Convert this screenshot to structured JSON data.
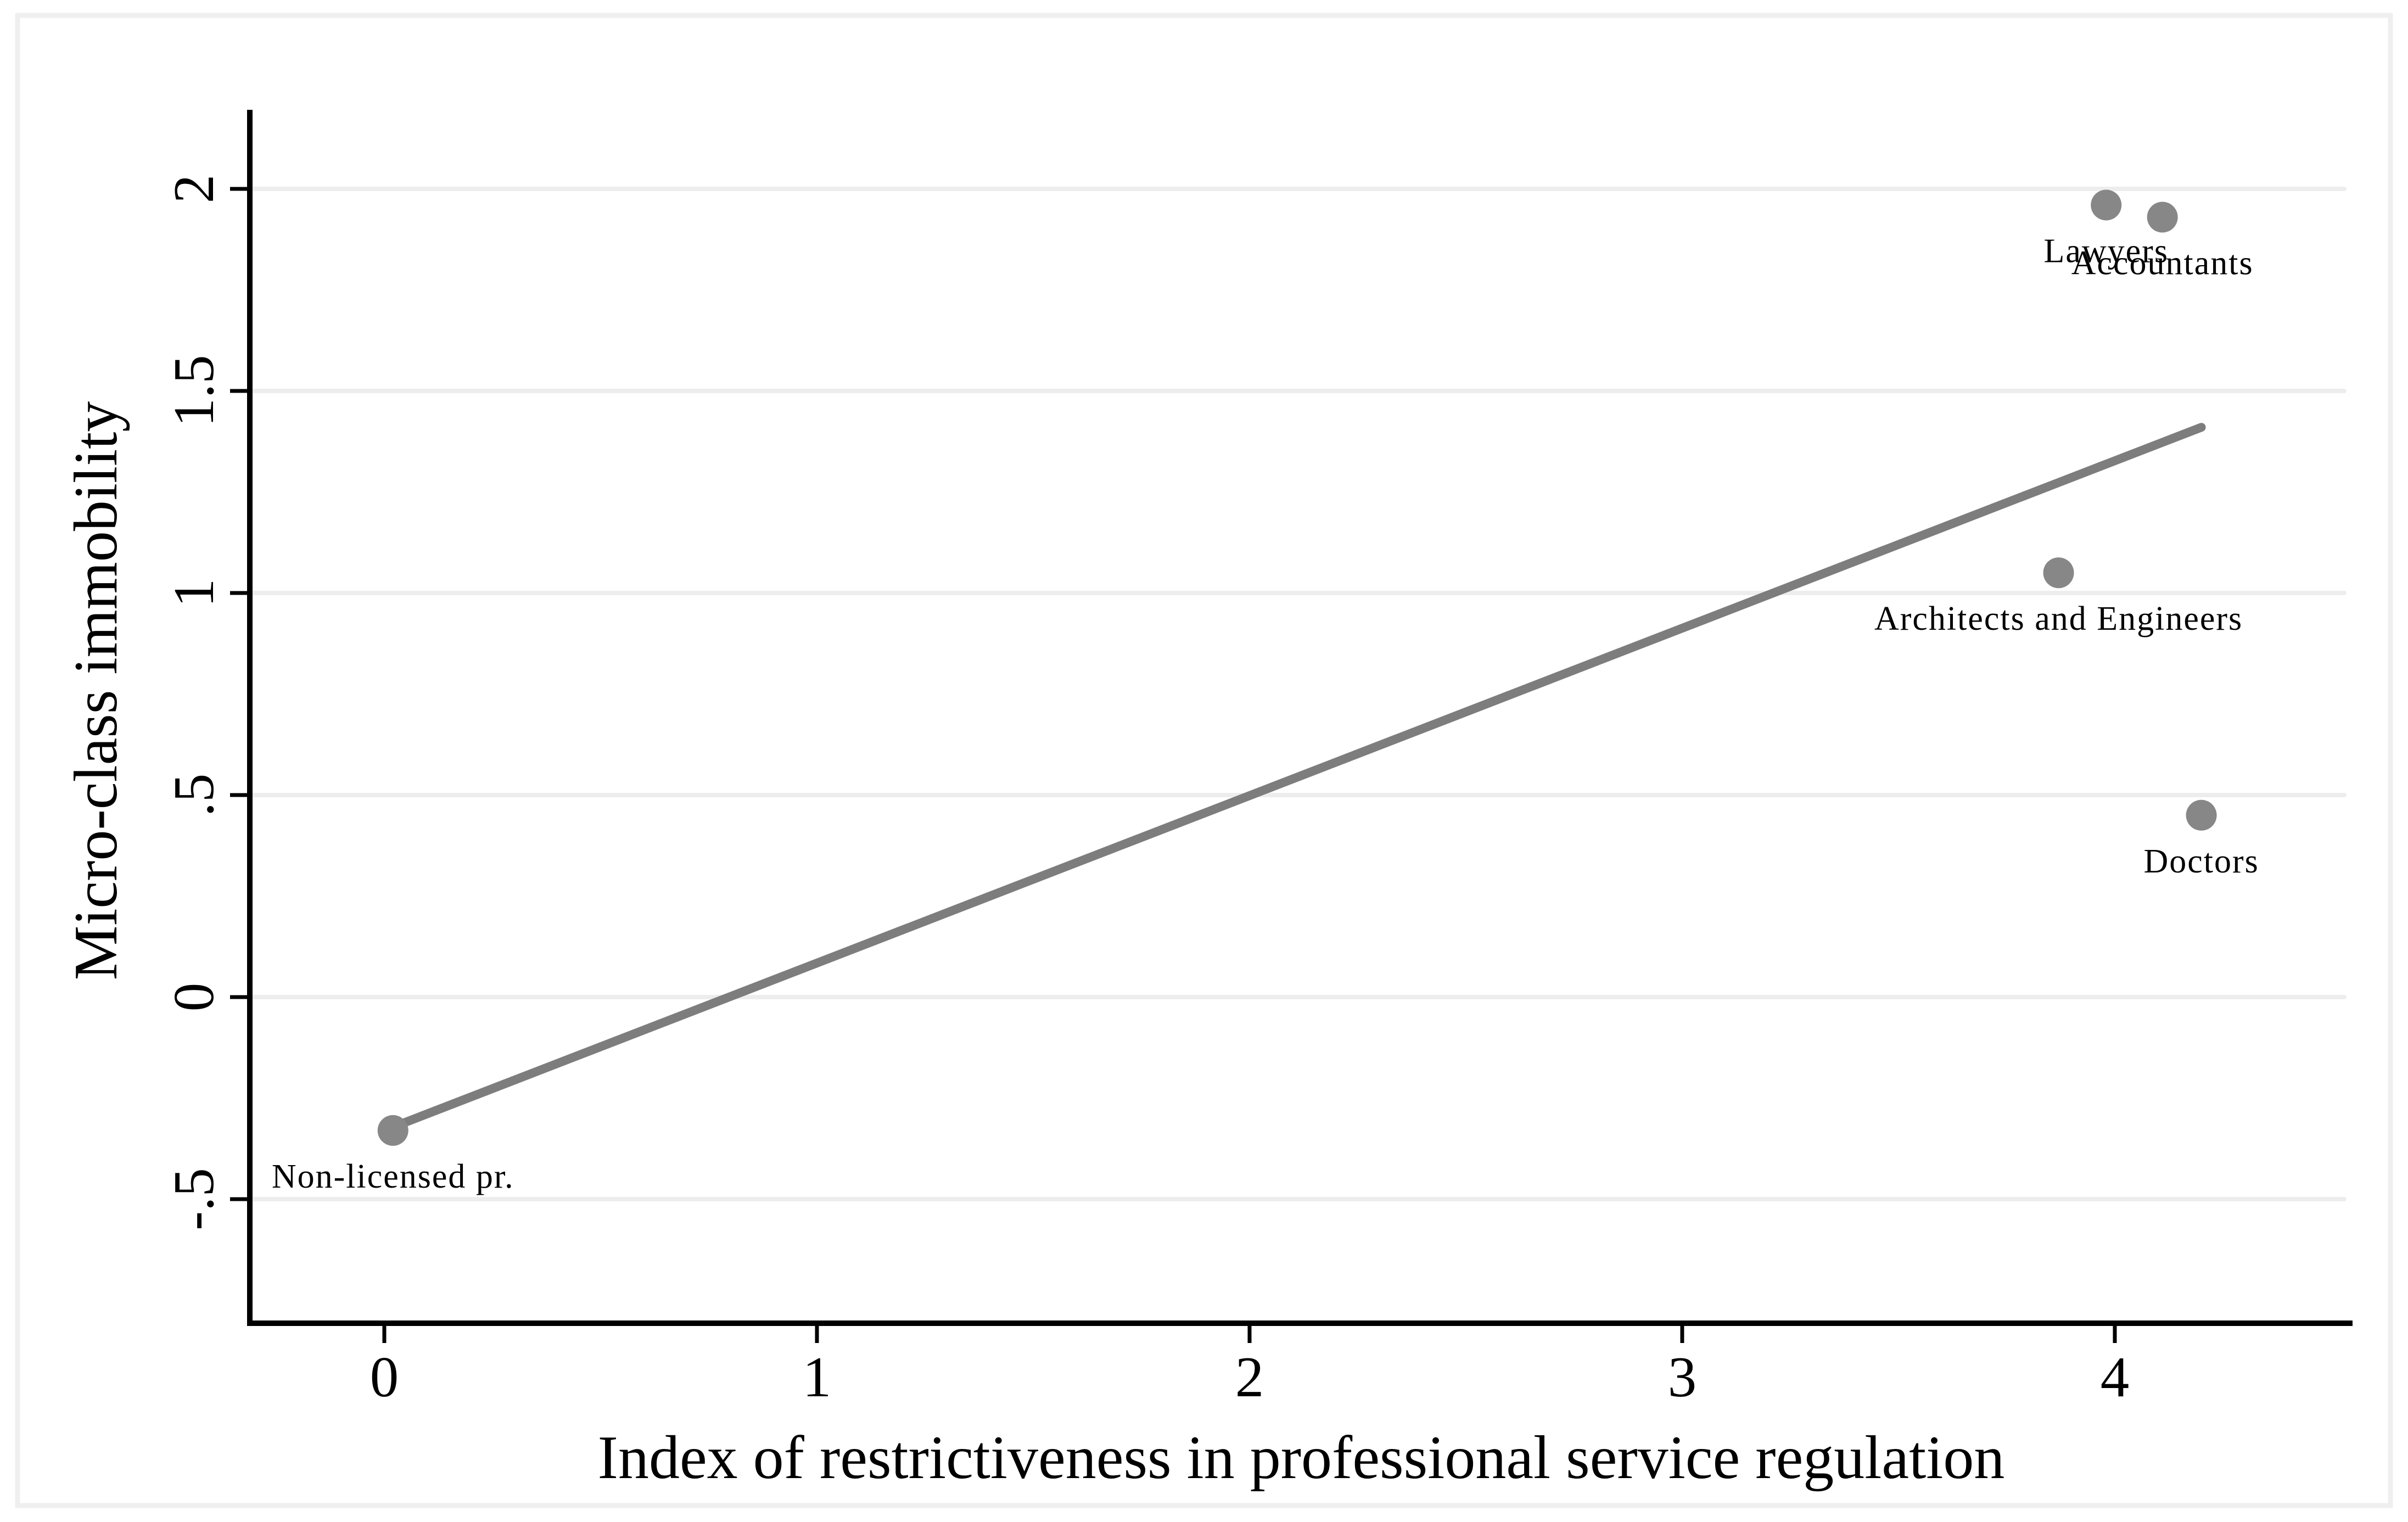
{
  "figure": {
    "background": "#ffffff",
    "border_color": "#efefef"
  },
  "chart_data": {
    "type": "scatter",
    "title": "",
    "xlabel": "Index of restrictiveness in professional service regulation",
    "ylabel": "Micro-class immobility",
    "x_ticks": [
      0,
      1,
      2,
      3,
      4
    ],
    "x_tick_labels": [
      "0",
      "1",
      "2",
      "3",
      "4"
    ],
    "y_ticks": [
      -0.5,
      0,
      0.5,
      1,
      1.5,
      2
    ],
    "y_tick_labels": [
      "-.5",
      "0",
      ".5",
      "1",
      "1.5",
      "2"
    ],
    "xlim": [
      -0.31,
      4.55
    ],
    "ylim": [
      -0.81,
      2.2
    ],
    "grid": "horizontal",
    "legend": "none",
    "points": [
      {
        "label": "Lawyers",
        "x": 3.98,
        "y": 1.96
      },
      {
        "label": "Accountants",
        "x": 4.11,
        "y": 1.93
      },
      {
        "label": "Architects and Engineers",
        "x": 3.87,
        "y": 1.05
      },
      {
        "label": "Doctors",
        "x": 4.2,
        "y": 0.45
      },
      {
        "label": "Non-licensed pr.",
        "x": 0.02,
        "y": -0.33
      }
    ],
    "fit_line": {
      "x1": 0.0,
      "y1": -0.33,
      "x2": 4.2,
      "y2": 1.41,
      "slope": 0.41,
      "intercept": -0.33
    },
    "colors": {
      "marker": "#878787",
      "line": "#7d7d7d",
      "grid": "#ededed",
      "axis": "#000000",
      "text": "#000000"
    }
  }
}
